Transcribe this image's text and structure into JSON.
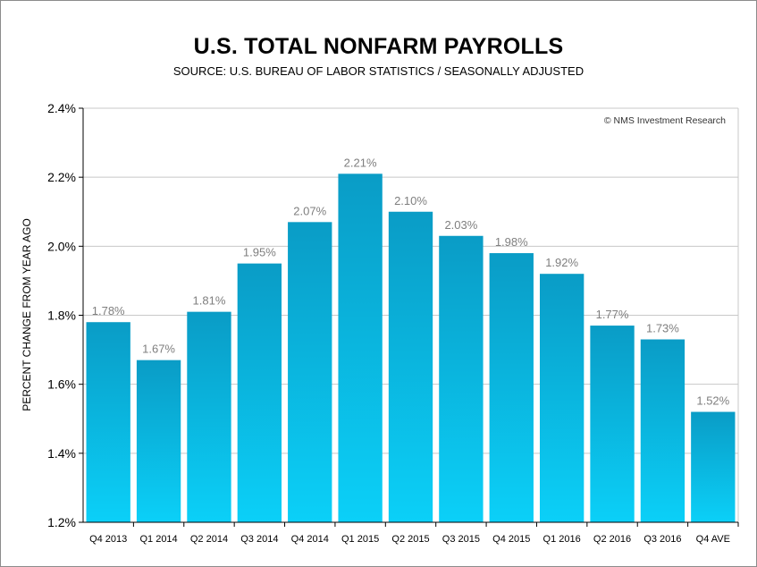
{
  "chart_data": {
    "type": "bar",
    "title": "U.S. TOTAL NONFARM PAYROLLS",
    "subtitle": "SOURCE: U.S. BUREAU OF LABOR STATISTICS / SEASONALLY ADJUSTED",
    "ylabel": "PERCENT CHANGE FROM YEAR AGO",
    "xlabel": "",
    "credit": "© NMS Investment Research",
    "categories": [
      "Q4 2013",
      "Q1 2014",
      "Q2 2014",
      "Q3 2014",
      "Q4 2014",
      "Q1 2015",
      "Q2 2015",
      "Q3 2015",
      "Q4 2015",
      "Q1 2016",
      "Q2 2016",
      "Q3 2016",
      "Q4 AVE"
    ],
    "values": [
      1.78,
      1.67,
      1.81,
      1.95,
      2.07,
      2.21,
      2.1,
      2.03,
      1.98,
      1.92,
      1.77,
      1.73,
      1.52
    ],
    "data_labels": [
      "1.78%",
      "1.67%",
      "1.81%",
      "1.95%",
      "2.07%",
      "2.21%",
      "2.10%",
      "2.03%",
      "1.98%",
      "1.92%",
      "1.77%",
      "1.73%",
      "1.52%"
    ],
    "ylim": [
      1.2,
      2.4
    ],
    "yticks": [
      {
        "value": 1.2,
        "label": "1.2%"
      },
      {
        "value": 1.4,
        "label": "1.4%"
      },
      {
        "value": 1.6,
        "label": "1.6%"
      },
      {
        "value": 1.8,
        "label": "1.8%"
      },
      {
        "value": 2.0,
        "label": "2.0%"
      },
      {
        "value": 2.2,
        "label": "2.2%"
      },
      {
        "value": 2.4,
        "label": "2.4%"
      }
    ],
    "grid": true,
    "colors": {
      "bar_top": "#0a9cc6",
      "bar_bottom": "#0bd0f8",
      "grid": "#c8c8c8",
      "data_label": "#7f7f7f"
    }
  }
}
